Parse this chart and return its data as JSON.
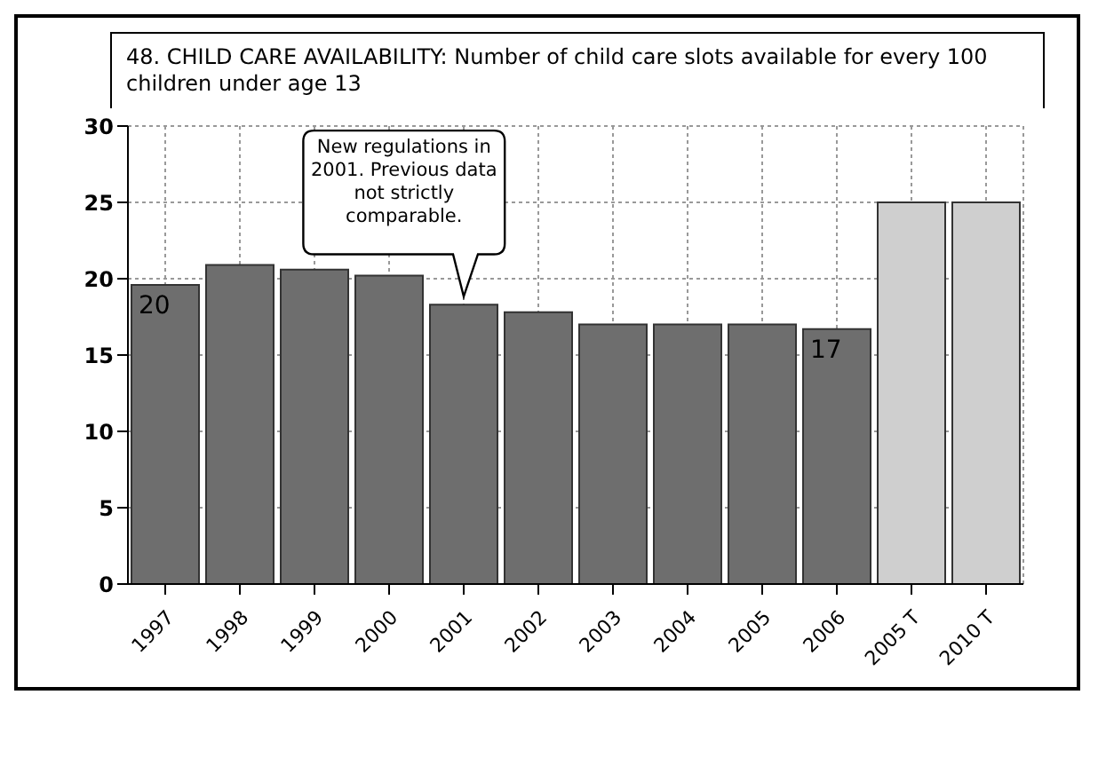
{
  "chart_data": {
    "type": "bar",
    "title": "48. CHILD CARE AVAILABILITY: Number of child care slots available for every 100 children under age 13",
    "categories": [
      "1997",
      "1998",
      "1999",
      "2000",
      "2001",
      "2002",
      "2003",
      "2004",
      "2005",
      "2006",
      "2005 T",
      "2010 T"
    ],
    "values": [
      19.6,
      20.9,
      20.6,
      20.2,
      18.3,
      17.8,
      17,
      17,
      17,
      16.7,
      25,
      25
    ],
    "value_labels": [
      "20",
      null,
      null,
      null,
      null,
      null,
      null,
      null,
      null,
      "17",
      null,
      null
    ],
    "colors": [
      "#6e6e6e",
      "#6e6e6e",
      "#6e6e6e",
      "#6e6e6e",
      "#6e6e6e",
      "#6e6e6e",
      "#6e6e6e",
      "#6e6e6e",
      "#6e6e6e",
      "#6e6e6e",
      "#cfcfcf",
      "#cfcfcf"
    ],
    "ylim": [
      0,
      30
    ],
    "yticks": [
      0,
      5,
      10,
      15,
      20,
      25,
      30
    ],
    "grid": true,
    "annotations": [
      "New regulations in 2001. Previous data not strictly comparable."
    ]
  }
}
